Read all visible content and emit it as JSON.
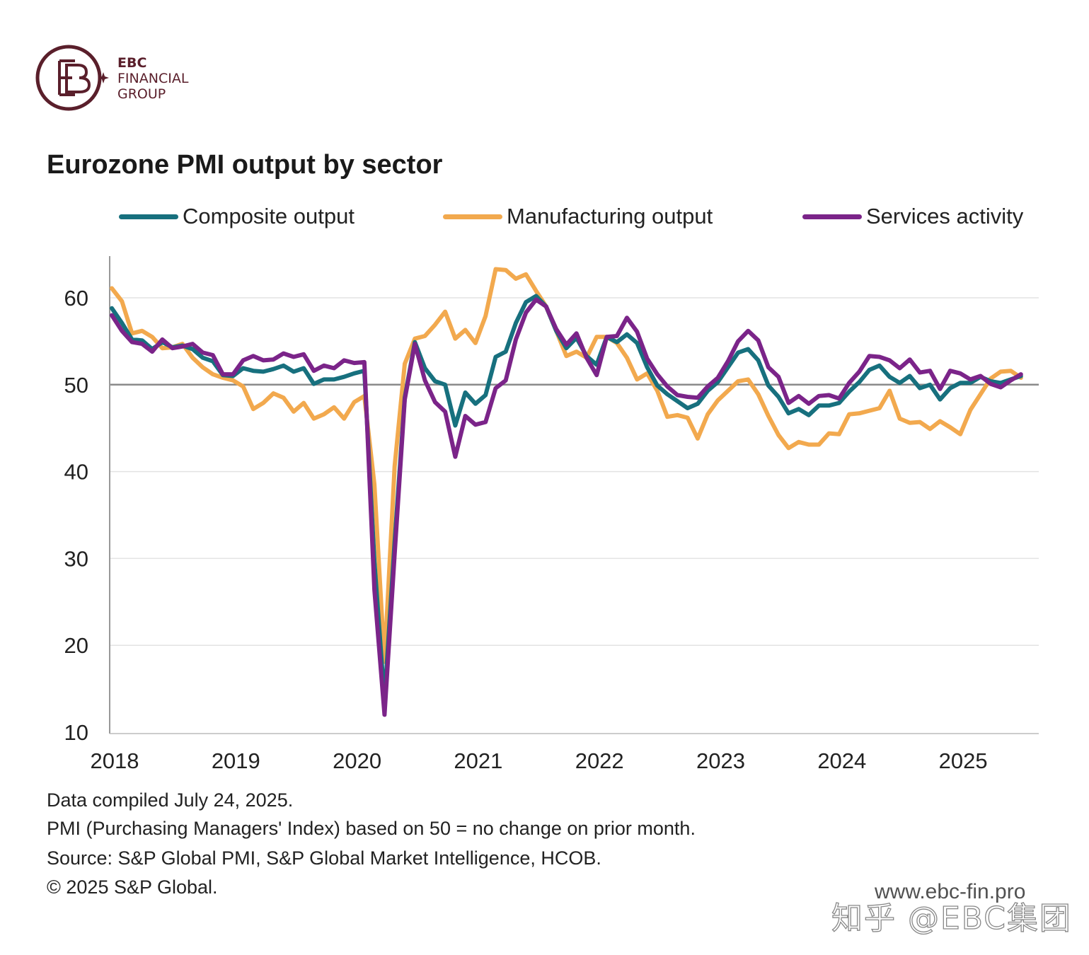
{
  "brand": {
    "line1": "EBC",
    "line2": "FINANCIAL",
    "line3": "GROUP",
    "color": "#5a1f2b"
  },
  "title": "Eurozone PMI output by sector",
  "legend": [
    {
      "label": "Composite output",
      "color": "#17707e"
    },
    {
      "label": "Manufacturing output",
      "color": "#f2a94e"
    },
    {
      "label": "Services activity",
      "color": "#7b2489"
    }
  ],
  "notes": {
    "line1": "Data compiled July 24, 2025.",
    "line2": "PMI (Purchasing Managers' Index) based on 50 = no change on prior month.",
    "line3": "Source: S&P Global PMI, S&P Global Market Intelligence, HCOB.",
    "line4": "© 2025 S&P Global."
  },
  "watermark": {
    "url": "www.ebc-fin.pro",
    "handle": "知乎 @EBC集团"
  },
  "chart_data": {
    "type": "line",
    "xlabel": "",
    "ylabel": "",
    "ylim": [
      10,
      65
    ],
    "yticks": [
      10,
      20,
      30,
      40,
      50,
      60
    ],
    "xticks": [
      "2018",
      "2019",
      "2020",
      "2021",
      "2022",
      "2023",
      "2024",
      "2025"
    ],
    "reference_line": 50,
    "grid": "horizontal",
    "legend_position": "top",
    "x_start": "2018-01",
    "x_end": "2025-07",
    "frequency": "monthly",
    "series": [
      {
        "name": "Composite output",
        "color": "#17707e",
        "values": [
          58.8,
          57.1,
          55.2,
          55.1,
          54.1,
          54.9,
          54.3,
          54.5,
          54.1,
          53.1,
          52.7,
          51.1,
          51.0,
          51.9,
          51.6,
          51.5,
          51.8,
          52.2,
          51.5,
          51.9,
          50.1,
          50.6,
          50.6,
          50.9,
          51.3,
          51.6,
          29.7,
          13.6,
          31.9,
          48.5,
          54.9,
          51.9,
          50.4,
          50.0,
          45.3,
          49.1,
          47.8,
          48.8,
          53.2,
          53.8,
          57.1,
          59.5,
          60.2,
          59.0,
          56.2,
          54.2,
          55.4,
          53.3,
          52.3,
          55.5,
          54.9,
          55.8,
          54.8,
          52.0,
          49.9,
          48.9,
          48.1,
          47.3,
          47.8,
          49.3,
          50.3,
          52.0,
          53.7,
          54.1,
          52.8,
          49.9,
          48.6,
          46.7,
          47.2,
          46.5,
          47.6,
          47.6,
          47.9,
          49.2,
          50.3,
          51.7,
          52.2,
          50.9,
          50.2,
          51.0,
          49.6,
          50.0,
          48.3,
          49.6,
          50.2,
          50.2,
          50.9,
          50.4,
          50.2,
          50.6,
          51.0
        ]
      },
      {
        "name": "Manufacturing output",
        "color": "#f2a94e",
        "values": [
          61.1,
          59.6,
          55.9,
          56.2,
          55.5,
          54.2,
          54.3,
          54.7,
          53.1,
          52.0,
          51.2,
          50.8,
          50.5,
          49.8,
          47.2,
          47.9,
          49.0,
          48.5,
          46.9,
          47.9,
          46.1,
          46.6,
          47.4,
          46.1,
          48.0,
          48.7,
          38.5,
          18.1,
          40.6,
          52.4,
          55.3,
          55.6,
          56.9,
          58.4,
          55.3,
          56.3,
          54.8,
          57.9,
          63.3,
          63.2,
          62.2,
          62.7,
          60.8,
          59.0,
          56.2,
          53.3,
          53.8,
          53.1,
          55.5,
          55.5,
          54.8,
          53.1,
          50.6,
          51.3,
          49.3,
          46.3,
          46.5,
          46.2,
          43.8,
          46.6,
          48.2,
          49.3,
          50.4,
          50.6,
          48.9,
          46.4,
          44.2,
          42.7,
          43.4,
          43.1,
          43.1,
          44.4,
          44.3,
          46.6,
          46.7,
          47.0,
          47.3,
          49.3,
          46.1,
          45.6,
          45.7,
          44.9,
          45.8,
          45.1,
          44.3,
          47.1,
          48.9,
          50.7,
          51.5,
          51.6,
          50.8
        ]
      },
      {
        "name": "Services activity",
        "color": "#7b2489",
        "values": [
          58.0,
          56.2,
          54.9,
          54.7,
          53.8,
          55.2,
          54.2,
          54.4,
          54.7,
          53.7,
          53.4,
          51.2,
          51.2,
          52.8,
          53.3,
          52.8,
          52.9,
          53.6,
          53.2,
          53.5,
          51.6,
          52.2,
          51.9,
          52.8,
          52.5,
          52.6,
          26.4,
          12.0,
          30.5,
          48.3,
          54.7,
          50.5,
          48.0,
          46.9,
          41.7,
          46.4,
          45.4,
          45.7,
          49.6,
          50.5,
          55.2,
          58.3,
          59.8,
          59.0,
          56.4,
          54.6,
          55.9,
          53.1,
          51.1,
          55.5,
          55.6,
          57.7,
          56.1,
          53.0,
          51.2,
          49.8,
          48.8,
          48.6,
          48.5,
          49.8,
          50.8,
          52.7,
          55.0,
          56.2,
          55.1,
          52.0,
          50.9,
          47.9,
          48.7,
          47.8,
          48.7,
          48.8,
          48.4,
          50.2,
          51.5,
          53.3,
          53.2,
          52.8,
          51.9,
          52.9,
          51.4,
          51.6,
          49.5,
          51.6,
          51.3,
          50.6,
          51.0,
          50.1,
          49.7,
          50.5,
          51.2
        ]
      }
    ]
  }
}
